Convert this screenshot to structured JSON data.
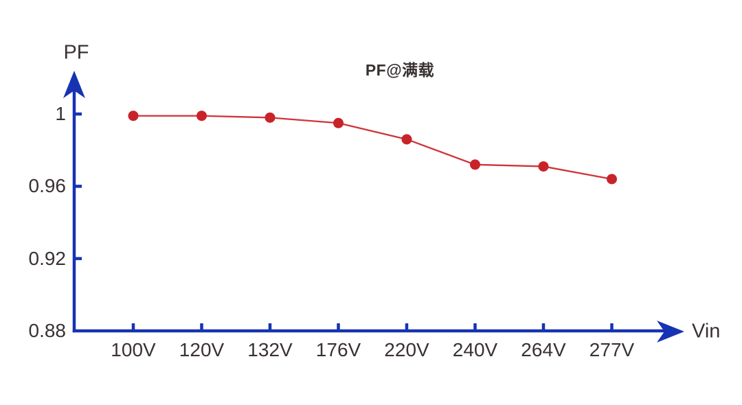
{
  "chart": {
    "title": "PF@满载",
    "y_axis_title": "PF",
    "x_axis_title": "Vin"
  },
  "chart_data": {
    "type": "line",
    "title": "PF@满载",
    "xlabel": "Vin",
    "ylabel": "PF",
    "categories": [
      "100V",
      "120V",
      "132V",
      "176V",
      "220V",
      "240V",
      "264V",
      "277V"
    ],
    "series": [
      {
        "name": "PF at full load",
        "values": [
          0.999,
          0.999,
          0.998,
          0.995,
          0.986,
          0.972,
          0.971,
          0.964
        ]
      }
    ],
    "y_ticks": [
      0.88,
      0.92,
      0.96,
      1
    ],
    "y_tick_labels": [
      "0.88",
      "0.92",
      "0.96",
      "1"
    ],
    "ylim": [
      0.88,
      1.02
    ],
    "grid": false,
    "legend_position": "none",
    "marker": "circle",
    "colors": {
      "axis": "#1733b3",
      "line": "#cf3439",
      "marker": "#c9232a",
      "text": "#3a3132",
      "background": "#ffffff"
    }
  }
}
